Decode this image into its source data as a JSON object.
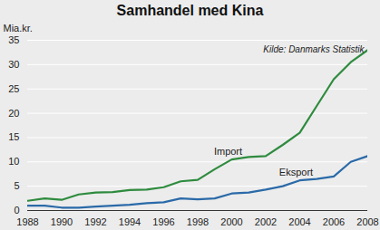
{
  "chart_data": {
    "type": "line",
    "title": "Samhandel med Kina",
    "y_label": "Mia.kr.",
    "source": "Kilde: Danmarks Statistik",
    "x": [
      1988,
      1989,
      1990,
      1991,
      1992,
      1993,
      1994,
      1995,
      1996,
      1997,
      1998,
      1999,
      2000,
      2001,
      2002,
      2003,
      2004,
      2005,
      2006,
      2007,
      2008
    ],
    "series": [
      {
        "name": "Import",
        "color": "#2e8b3e",
        "values": [
          2.0,
          2.5,
          2.2,
          3.3,
          3.7,
          3.8,
          4.2,
          4.3,
          4.8,
          6.0,
          6.3,
          8.5,
          10.5,
          11.0,
          11.2,
          13.5,
          16.0,
          21.5,
          27.0,
          30.5,
          33.0
        ]
      },
      {
        "name": "Eksport",
        "color": "#2a6aa8",
        "values": [
          1.0,
          1.0,
          0.6,
          0.6,
          0.8,
          1.0,
          1.2,
          1.5,
          1.7,
          2.5,
          2.3,
          2.5,
          3.5,
          3.7,
          4.3,
          5.0,
          6.2,
          6.5,
          7.0,
          10.0,
          11.2
        ]
      }
    ],
    "xlim": [
      1988,
      2008
    ],
    "xticks": [
      1988,
      1990,
      1992,
      1994,
      1996,
      1998,
      2000,
      2002,
      2004,
      2006,
      2008
    ],
    "ylim": [
      0,
      35
    ],
    "yticks": [
      0,
      5,
      10,
      15,
      20,
      25,
      30,
      35
    ],
    "grid": true
  }
}
